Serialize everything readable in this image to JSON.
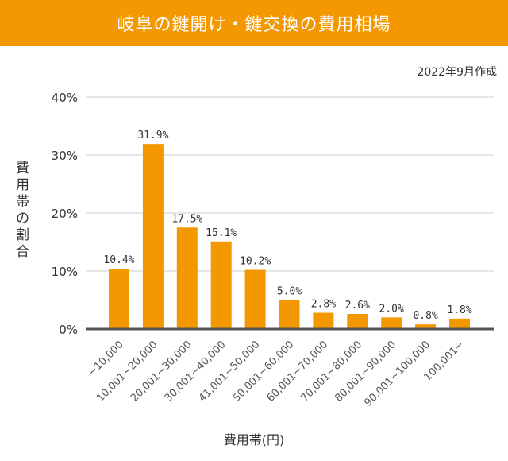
{
  "chart_data": {
    "type": "bar",
    "title": "岐阜の鍵開け・鍵交換の費用相場",
    "subtitle": "2022年9月作成",
    "xlabel": "費用帯(円)",
    "ylabel": "費用帯の割合",
    "categories": [
      "~10,000",
      "10,001~20,000",
      "20,001~30,000",
      "30,001~40,000",
      "41,001~50,000",
      "50,001~60,000",
      "60,001~70,000",
      "70,001~80,000",
      "80,001~90,000",
      "90,001~100,000",
      "100,001~"
    ],
    "values": [
      10.4,
      31.9,
      17.5,
      15.1,
      10.2,
      5.0,
      2.8,
      2.6,
      2.0,
      0.8,
      1.8
    ],
    "data_labels": [
      "10.4%",
      "31.9%",
      "17.5%",
      "15.1%",
      "10.2%",
      "5.0%",
      "2.8%",
      "2.6%",
      "2.0%",
      "0.8%",
      "1.8%"
    ],
    "yticks": [
      "0%",
      "10%",
      "20%",
      "30%",
      "40%"
    ],
    "ylim": [
      0,
      40
    ],
    "grid": true,
    "bar_color": "#f39800"
  }
}
